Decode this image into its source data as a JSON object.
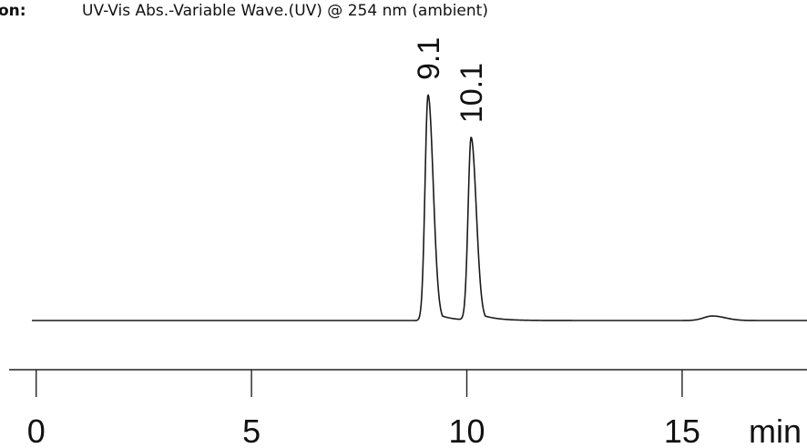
{
  "header": {
    "label": "on:",
    "detector": "UV-Vis Abs.-Variable Wave.(UV) @ 254 nm (ambient)"
  },
  "chart_data": {
    "type": "line",
    "title": "",
    "xlabel": "min",
    "ylabel": "",
    "xlim": [
      -0.1,
      17.9
    ],
    "ylim": [
      0,
      1
    ],
    "x_ticks": [
      0,
      5,
      10,
      15
    ],
    "x_tick_labels": [
      "0",
      "5",
      "10",
      "15"
    ],
    "grid": false,
    "series": [
      {
        "baseline": 0.0,
        "peaks": [
          {
            "label": "9.1",
            "x": 9.1,
            "height": 1.0,
            "sigma_left": 0.07,
            "sigma_right": 0.12,
            "tail": 0.3
          },
          {
            "label": "10.1",
            "x": 10.1,
            "height": 0.81,
            "sigma_left": 0.07,
            "sigma_right": 0.12,
            "tail": 0.35
          },
          {
            "label": "",
            "x": 15.7,
            "height": 0.02,
            "sigma_left": 0.2,
            "sigma_right": 0.3,
            "tail": 0.3
          }
        ]
      }
    ],
    "line_color": "#1a1a1a"
  }
}
